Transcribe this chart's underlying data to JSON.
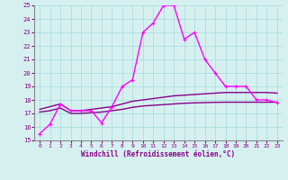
{
  "xlabel": "Windchill (Refroidissement éolien,°C)",
  "xlim": [
    -0.5,
    23.5
  ],
  "ylim": [
    15,
    25
  ],
  "yticks": [
    15,
    16,
    17,
    18,
    19,
    20,
    21,
    22,
    23,
    24,
    25
  ],
  "xticks": [
    0,
    1,
    2,
    3,
    4,
    5,
    6,
    7,
    8,
    9,
    10,
    11,
    12,
    13,
    14,
    15,
    16,
    17,
    18,
    19,
    20,
    21,
    22,
    23
  ],
  "background_color": "#d6f0f0",
  "grid_color": "#aadddd",
  "line1_color": "#ff00ff",
  "line23_color": "#880088",
  "line1_x": [
    0,
    1,
    2,
    3,
    4,
    5,
    6,
    7,
    8,
    9,
    10,
    11,
    12,
    13,
    14,
    15,
    16,
    17,
    18,
    19,
    20,
    21,
    22,
    23
  ],
  "line1_y": [
    15.5,
    16.2,
    17.7,
    17.2,
    17.2,
    17.2,
    16.3,
    17.5,
    19.0,
    19.5,
    23.0,
    23.7,
    25.0,
    25.0,
    22.5,
    23.0,
    21.0,
    20.0,
    19.0,
    19.0,
    19.0,
    18.0,
    18.0,
    17.8
  ],
  "line2_x": [
    0,
    1,
    2,
    3,
    4,
    5,
    6,
    7,
    8,
    9,
    10,
    11,
    12,
    13,
    14,
    15,
    16,
    17,
    18,
    19,
    20,
    21,
    22,
    23
  ],
  "line2_y": [
    17.3,
    17.5,
    17.7,
    17.2,
    17.2,
    17.3,
    17.4,
    17.5,
    17.7,
    17.9,
    18.0,
    18.1,
    18.2,
    18.3,
    18.35,
    18.4,
    18.45,
    18.5,
    18.55,
    18.55,
    18.55,
    18.55,
    18.55,
    18.5
  ],
  "line3_x": [
    0,
    1,
    2,
    3,
    4,
    5,
    6,
    7,
    8,
    9,
    10,
    11,
    12,
    13,
    14,
    15,
    16,
    17,
    18,
    19,
    20,
    21,
    22,
    23
  ],
  "line3_y": [
    17.1,
    17.2,
    17.4,
    17.0,
    17.0,
    17.05,
    17.1,
    17.2,
    17.3,
    17.45,
    17.55,
    17.6,
    17.65,
    17.7,
    17.75,
    17.78,
    17.8,
    17.82,
    17.83,
    17.83,
    17.83,
    17.83,
    17.83,
    17.83
  ]
}
